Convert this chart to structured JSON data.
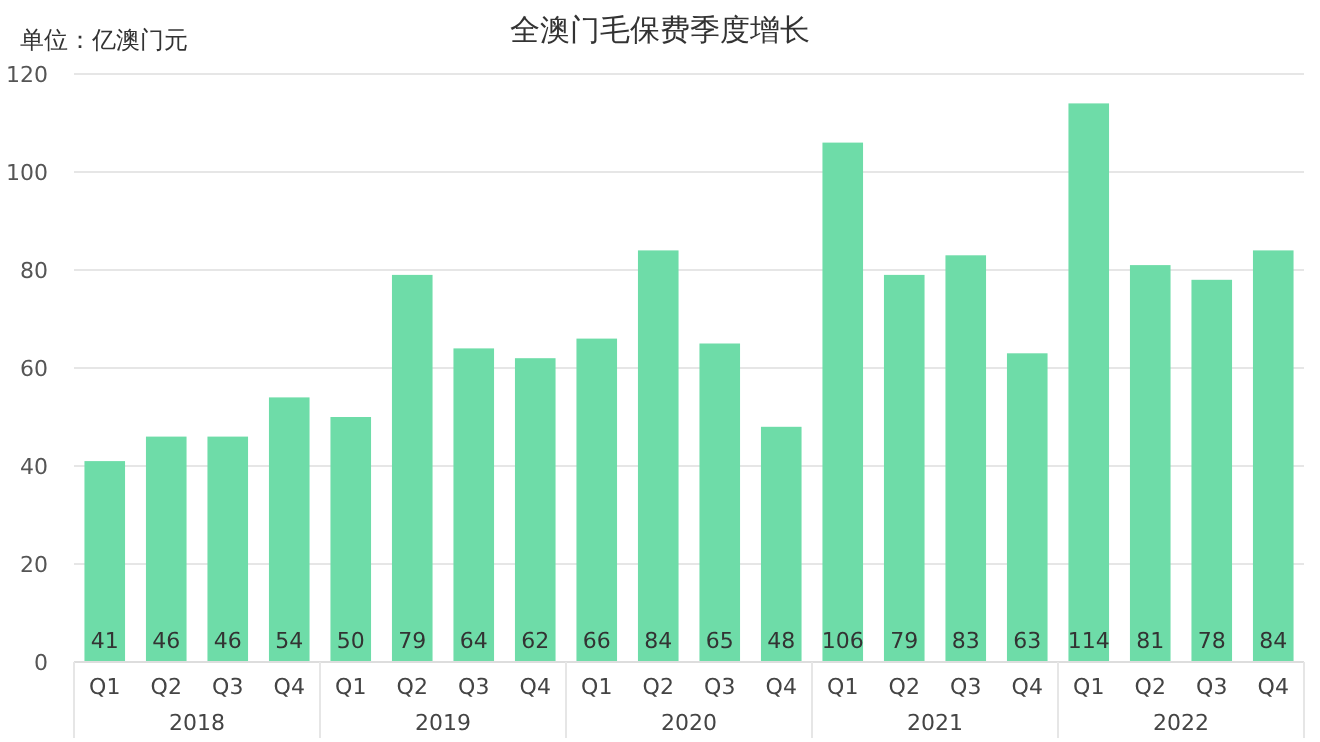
{
  "chart_data": {
    "type": "bar",
    "title": "全澳门毛保费季度增长",
    "ylabel": "单位：亿澳门元",
    "categories": [
      "Q1",
      "Q2",
      "Q3",
      "Q4",
      "Q1",
      "Q2",
      "Q3",
      "Q4",
      "Q1",
      "Q2",
      "Q3",
      "Q4",
      "Q1",
      "Q2",
      "Q3",
      "Q4",
      "Q1",
      "Q2",
      "Q3",
      "Q4"
    ],
    "values": [
      41,
      46,
      46,
      54,
      50,
      79,
      64,
      62,
      66,
      84,
      65,
      48,
      106,
      79,
      83,
      63,
      114,
      81,
      78,
      84
    ],
    "color": "#6edca8",
    "data_labels": true,
    "ylim": [
      0,
      120
    ],
    "yticks": [
      0,
      20,
      40,
      60,
      80,
      100,
      120
    ],
    "grid": "y",
    "annotations": [
      "2018",
      "2019",
      "2020",
      "2021",
      "2022"
    ]
  }
}
